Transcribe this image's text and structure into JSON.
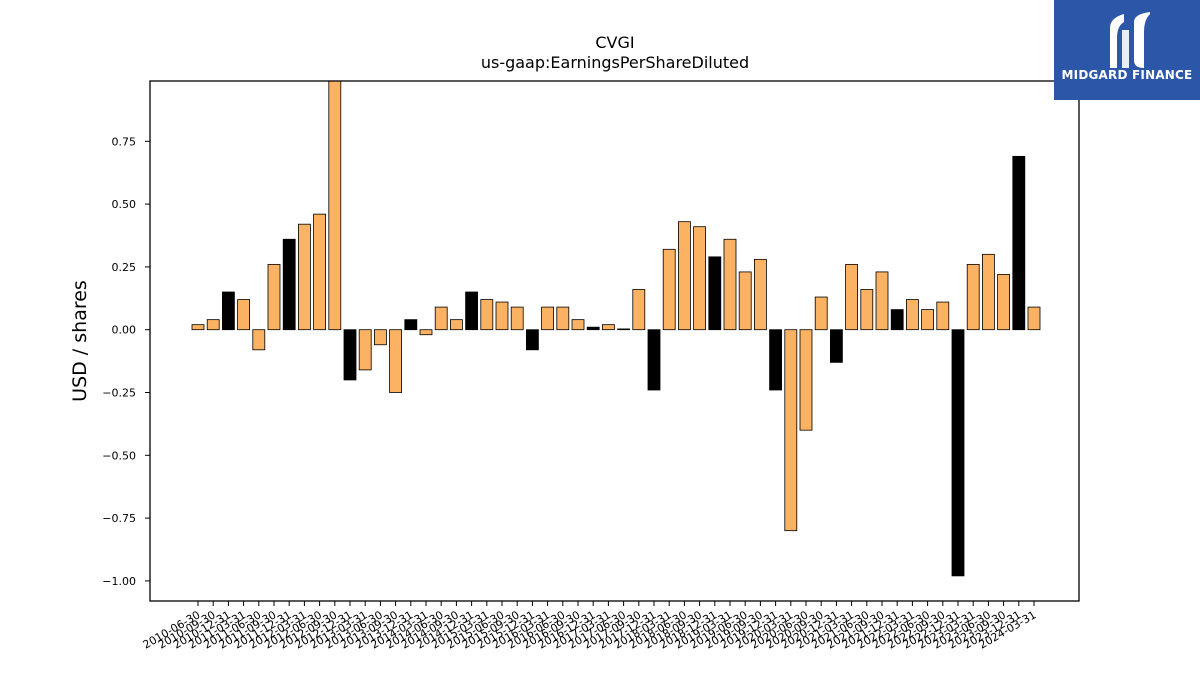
{
  "logo": {
    "text": "MIDGARD FINANCE",
    "bg_color": "#2c56a8"
  },
  "chart_data": {
    "type": "bar",
    "title": "CVGI",
    "subtitle": "us-gaap:EarningsPerShareDiluted",
    "xlabel": "",
    "ylabel": "USD / shares",
    "ylim": [
      -1.08,
      0.99
    ],
    "yticks": [
      -1.0,
      -0.75,
      -0.5,
      -0.25,
      0.0,
      0.25,
      0.5,
      0.75
    ],
    "ytick_labels": [
      "−1.00",
      "−0.75",
      "−0.50",
      "−0.25",
      "0.00",
      "0.25",
      "0.50",
      "0.75"
    ],
    "grid": false,
    "colors": {
      "quarter": "#fbb263",
      "annual": "#000000",
      "edge": "#000000"
    },
    "categories": [
      "2010-06-30",
      "2010-09-30",
      "2010-12-31",
      "2011-03-31",
      "2011-06-30",
      "2011-09-30",
      "2011-12-31",
      "2012-03-31",
      "2012-06-30",
      "2012-09-30",
      "2012-12-31",
      "2013-03-31",
      "2013-06-30",
      "2013-09-30",
      "2013-12-31",
      "2014-03-31",
      "2014-06-30",
      "2014-09-30",
      "2014-12-31",
      "2015-03-31",
      "2015-06-30",
      "2015-09-30",
      "2015-12-31",
      "2016-03-31",
      "2016-06-30",
      "2016-09-30",
      "2016-12-31",
      "2017-03-31",
      "2017-06-30",
      "2017-09-30",
      "2017-12-31",
      "2018-03-31",
      "2018-06-30",
      "2018-09-30",
      "2018-12-31",
      "2019-03-31",
      "2019-06-30",
      "2019-09-30",
      "2019-12-31",
      "2020-03-31",
      "2020-06-30",
      "2020-09-30",
      "2020-12-31",
      "2021-03-31",
      "2021-06-30",
      "2021-09-30",
      "2021-12-31",
      "2022-03-31",
      "2022-06-30",
      "2022-09-30",
      "2022-12-31",
      "2023-03-31",
      "2023-06-30",
      "2023-09-30",
      "2023-12-31",
      "2024-03-31"
    ],
    "values": [
      0.02,
      0.04,
      0.15,
      0.12,
      -0.08,
      0.26,
      0.36,
      0.42,
      0.46,
      1.05,
      -0.2,
      -0.16,
      -0.06,
      -0.25,
      0.04,
      -0.02,
      0.09,
      0.04,
      0.15,
      0.12,
      0.11,
      0.09,
      -0.08,
      0.09,
      0.09,
      0.04,
      0.01,
      0.02,
      0.003,
      0.16,
      -0.24,
      0.32,
      0.43,
      0.41,
      0.29,
      0.36,
      0.23,
      0.28,
      -0.24,
      -0.8,
      -0.4,
      0.13,
      -0.13,
      0.26,
      0.16,
      0.23,
      0.08,
      0.12,
      0.08,
      0.11,
      -0.98,
      0.26,
      0.3,
      0.22,
      0.69,
      0.09
    ],
    "annual": [
      false,
      false,
      true,
      false,
      false,
      false,
      true,
      false,
      false,
      false,
      true,
      false,
      false,
      false,
      true,
      false,
      false,
      false,
      true,
      false,
      false,
      false,
      true,
      false,
      false,
      false,
      true,
      false,
      false,
      false,
      true,
      false,
      false,
      false,
      true,
      false,
      false,
      false,
      true,
      false,
      false,
      false,
      true,
      false,
      false,
      false,
      true,
      false,
      false,
      false,
      true,
      false,
      false,
      false,
      true,
      false
    ]
  }
}
